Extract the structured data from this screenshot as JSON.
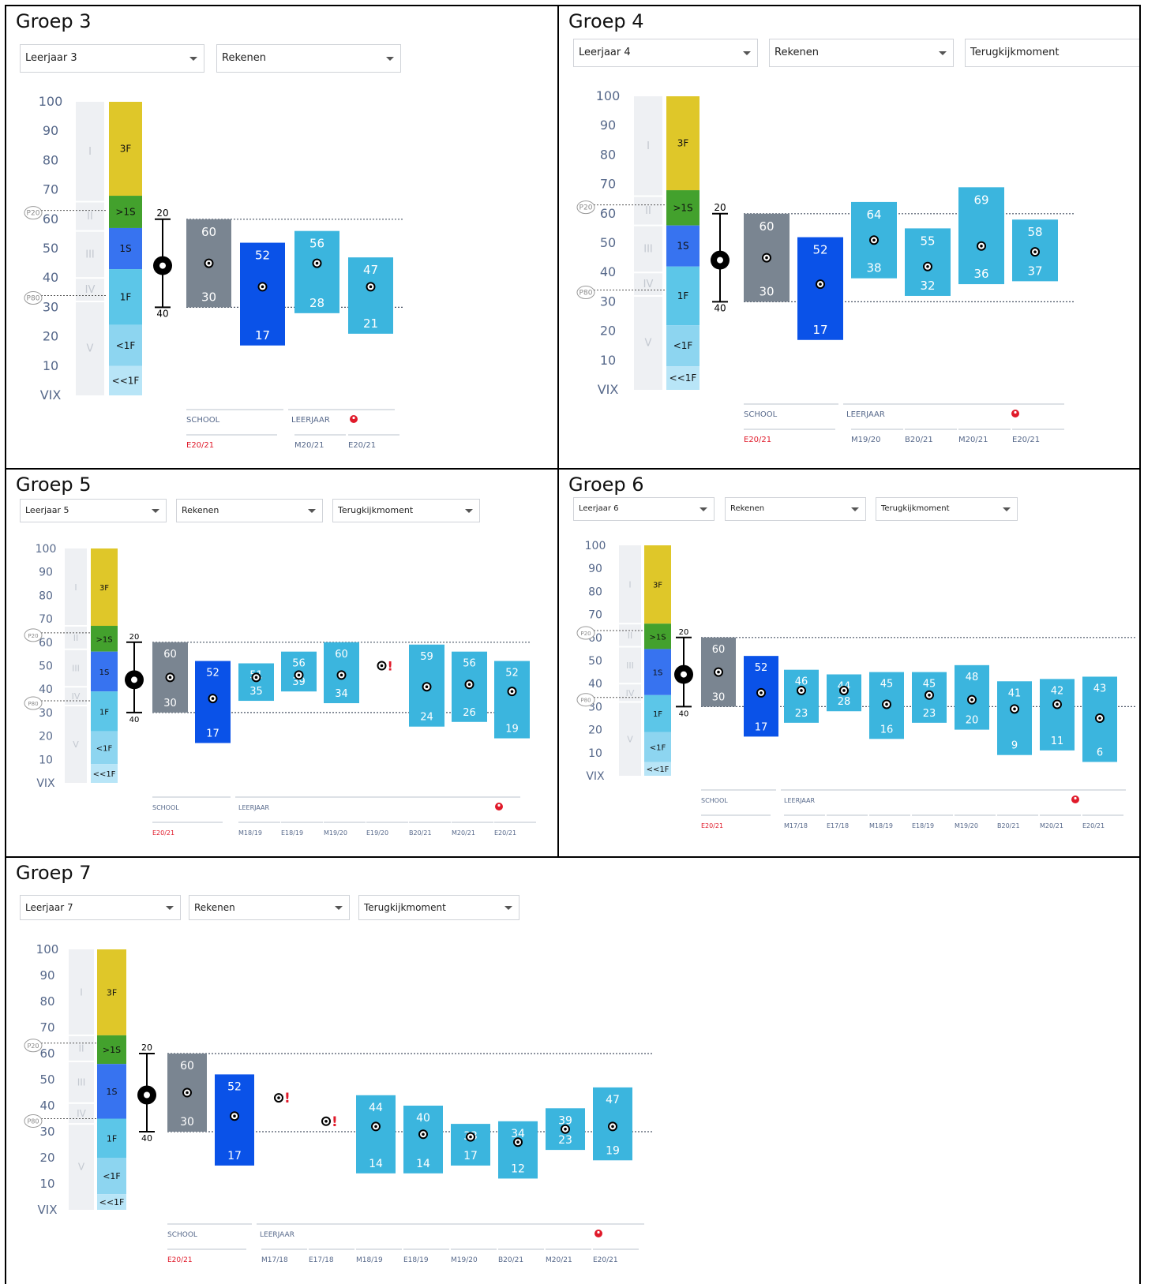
{
  "colors": {
    "school": "#7a8591",
    "year_current": "#0a52e8",
    "history": "#3bb5de",
    "level_3F": "#dfc729",
    "level_gt1S": "#43a12d",
    "level_1S": "#3773f0",
    "level_1F": "#5cc6e8",
    "level_lt1F": "#8dd5f0",
    "level_ltlt1F": "#b8e5f7",
    "roman_band": "#eef0f3",
    "alert": "#e01a2a",
    "axis_text": "#56688a"
  },
  "shared": {
    "y_ticks": [
      "100",
      "90",
      "80",
      "70",
      "60",
      "50",
      "40",
      "30",
      "20",
      "10",
      "VIX"
    ],
    "roman": [
      "I",
      "II",
      "III",
      "IV",
      "V"
    ],
    "levels": [
      "3F",
      ">1S",
      "1S",
      "1F",
      "<1F",
      "<<1F"
    ],
    "p20": "P20",
    "p80": "P80",
    "ref_top": "20",
    "ref_bottom": "40",
    "school_label": "SCHOOL",
    "leerjaar_label": "LEERJAAR",
    "alert_mark": "!"
  },
  "chart_data": [
    {
      "type": "bar",
      "title": "Groep 3",
      "dropdowns": [
        "Leerjaar 3",
        "Rekenen"
      ],
      "ylim": [
        0,
        100
      ],
      "y_axis_labels": [
        "100",
        "90",
        "80",
        "70",
        "60",
        "50",
        "40",
        "30",
        "20",
        "10",
        "VIX"
      ],
      "level_bands": [
        {
          "label": "3F",
          "from": 68,
          "to": 100
        },
        {
          "label": ">1S",
          "from": 57,
          "to": 68
        },
        {
          "label": "1S",
          "from": 43,
          "to": 57
        },
        {
          "label": "1F",
          "from": 24,
          "to": 43
        },
        {
          "label": "<1F",
          "from": 10,
          "to": 24
        },
        {
          "label": "<<1F",
          "from": 0,
          "to": 10
        }
      ],
      "p20": 63,
      "p80": 34,
      "reference_range": {
        "top": 20,
        "bottom": 40
      },
      "ranges": [
        {
          "x": "E20/21",
          "group": "school",
          "high": 60,
          "low": 30,
          "median": 45
        },
        {
          "x": "E20/21",
          "group": "leerjaar",
          "high": 52,
          "low": 17,
          "median": 37
        },
        {
          "x": "M20/21",
          "group": "history",
          "high": 56,
          "low": 28,
          "median": 45
        },
        {
          "x": "E20/21",
          "group": "history",
          "high": 47,
          "low": 21,
          "median": 37
        }
      ]
    },
    {
      "type": "bar",
      "title": "Groep 4",
      "dropdowns": [
        "Leerjaar 4",
        "Rekenen",
        "Terugkijkmoment"
      ],
      "ylim": [
        0,
        100
      ],
      "y_axis_labels": [
        "100",
        "90",
        "80",
        "70",
        "60",
        "50",
        "40",
        "30",
        "20",
        "10",
        "VIX"
      ],
      "level_bands": [
        {
          "label": "3F",
          "from": 68,
          "to": 100
        },
        {
          "label": ">1S",
          "from": 56,
          "to": 68
        },
        {
          "label": "1S",
          "from": 42,
          "to": 56
        },
        {
          "label": "1F",
          "from": 22,
          "to": 42
        },
        {
          "label": "<1F",
          "from": 8,
          "to": 22
        },
        {
          "label": "<<1F",
          "from": 0,
          "to": 8
        }
      ],
      "p20": 63,
      "p80": 34,
      "reference_range": {
        "top": 20,
        "bottom": 40
      },
      "ranges": [
        {
          "x": "E20/21",
          "group": "school",
          "high": 60,
          "low": 30,
          "median": 45
        },
        {
          "x": "E20/21",
          "group": "leerjaar",
          "high": 52,
          "low": 17,
          "median": 36
        },
        {
          "x": "M19/20",
          "group": "history",
          "high": 64,
          "low": 38,
          "median": 51
        },
        {
          "x": "B20/21",
          "group": "history",
          "high": 55,
          "low": 32,
          "median": 42
        },
        {
          "x": "M20/21",
          "group": "history",
          "high": 69,
          "low": 36,
          "median": 49
        },
        {
          "x": "E20/21",
          "group": "history",
          "high": 58,
          "low": 37,
          "median": 47
        }
      ]
    },
    {
      "type": "bar",
      "title": "Groep 5",
      "dropdowns": [
        "Leerjaar 5",
        "Rekenen",
        "Terugkijkmoment"
      ],
      "ylim": [
        0,
        100
      ],
      "y_axis_labels": [
        "100",
        "90",
        "80",
        "70",
        "60",
        "50",
        "40",
        "30",
        "20",
        "10",
        "VIX"
      ],
      "level_bands": [
        {
          "label": "3F",
          "from": 67,
          "to": 100
        },
        {
          "label": ">1S",
          "from": 56,
          "to": 67
        },
        {
          "label": "1S",
          "from": 39,
          "to": 56
        },
        {
          "label": "1F",
          "from": 22,
          "to": 39
        },
        {
          "label": "<1F",
          "from": 8,
          "to": 22
        },
        {
          "label": "<<1F",
          "from": 0,
          "to": 8
        }
      ],
      "p20": 64,
      "p80": 35,
      "reference_range": {
        "top": 20,
        "bottom": 40
      },
      "ranges": [
        {
          "x": "E20/21",
          "group": "school",
          "high": 60,
          "low": 30,
          "median": 45
        },
        {
          "x": "E20/21",
          "group": "leerjaar",
          "high": 52,
          "low": 17,
          "median": 36
        },
        {
          "x": "M18/19",
          "group": "history",
          "high": 51,
          "low": 35,
          "median": 45
        },
        {
          "x": "E18/19",
          "group": "history",
          "high": 56,
          "low": 39,
          "median": 46
        },
        {
          "x": "M19/20",
          "group": "history",
          "high": 60,
          "low": 34,
          "median": 46
        },
        {
          "x": "E19/20",
          "group": "history",
          "high": null,
          "low": null,
          "median": 50,
          "alert": true
        },
        {
          "x": "B20/21",
          "group": "history",
          "high": 59,
          "low": 24,
          "median": 41
        },
        {
          "x": "M20/21",
          "group": "history",
          "high": 56,
          "low": 26,
          "median": 42
        },
        {
          "x": "E20/21",
          "group": "history",
          "high": 52,
          "low": 19,
          "median": 39
        }
      ]
    },
    {
      "type": "bar",
      "title": "Groep 6",
      "dropdowns": [
        "Leerjaar 6",
        "Rekenen",
        "Terugkijkmoment"
      ],
      "ylim": [
        0,
        100
      ],
      "y_axis_labels": [
        "100",
        "90",
        "80",
        "70",
        "60",
        "50",
        "40",
        "30",
        "20",
        "10",
        "VIX"
      ],
      "level_bands": [
        {
          "label": "3F",
          "from": 66,
          "to": 100
        },
        {
          "label": ">1S",
          "from": 55,
          "to": 66
        },
        {
          "label": "1S",
          "from": 35,
          "to": 55
        },
        {
          "label": "1F",
          "from": 19,
          "to": 35
        },
        {
          "label": "<1F",
          "from": 6,
          "to": 19
        },
        {
          "label": "<<1F",
          "from": 0,
          "to": 6
        }
      ],
      "p20": 63,
      "p80": 34,
      "reference_range": {
        "top": 20,
        "bottom": 40
      },
      "ranges": [
        {
          "x": "E20/21",
          "group": "school",
          "high": 60,
          "low": 30,
          "median": 45
        },
        {
          "x": "E20/21",
          "group": "leerjaar",
          "high": 52,
          "low": 17,
          "median": 36
        },
        {
          "x": "M17/18",
          "group": "history",
          "high": 46,
          "low": 23,
          "median": 37
        },
        {
          "x": "E17/18",
          "group": "history",
          "high": 44,
          "low": 28,
          "median": 37
        },
        {
          "x": "M18/19",
          "group": "history",
          "high": 45,
          "low": 16,
          "median": 31
        },
        {
          "x": "E18/19",
          "group": "history",
          "high": 45,
          "low": 23,
          "median": 35
        },
        {
          "x": "M19/20",
          "group": "history",
          "high": 48,
          "low": 20,
          "median": 33
        },
        {
          "x": "B20/21",
          "group": "history",
          "high": 41,
          "low": 9,
          "median": 29
        },
        {
          "x": "M20/21",
          "group": "history",
          "high": 42,
          "low": 11,
          "median": 31
        },
        {
          "x": "E20/21",
          "group": "history",
          "high": 43,
          "low": 6,
          "median": 25
        }
      ]
    },
    {
      "type": "bar",
      "title": "Groep 7",
      "dropdowns": [
        "Leerjaar 7",
        "Rekenen",
        "Terugkijkmoment"
      ],
      "ylim": [
        0,
        100
      ],
      "y_axis_labels": [
        "100",
        "90",
        "80",
        "70",
        "60",
        "50",
        "40",
        "30",
        "20",
        "10",
        "VIX"
      ],
      "level_bands": [
        {
          "label": "3F",
          "from": 67,
          "to": 100
        },
        {
          "label": ">1S",
          "from": 56,
          "to": 67
        },
        {
          "label": "1S",
          "from": 35,
          "to": 56
        },
        {
          "label": "1F",
          "from": 20,
          "to": 35
        },
        {
          "label": "<1F",
          "from": 6,
          "to": 20
        },
        {
          "label": "<<1F",
          "from": 0,
          "to": 6
        }
      ],
      "p20": 64,
      "p80": 35,
      "reference_range": {
        "top": 20,
        "bottom": 40
      },
      "ranges": [
        {
          "x": "E20/21",
          "group": "school",
          "high": 60,
          "low": 30,
          "median": 45
        },
        {
          "x": "E20/21",
          "group": "leerjaar",
          "high": 52,
          "low": 17,
          "median": 36
        },
        {
          "x": "M17/18",
          "group": "history",
          "high": null,
          "low": null,
          "median": 43,
          "alert": true
        },
        {
          "x": "E17/18",
          "group": "history",
          "high": null,
          "low": null,
          "median": 34,
          "alert": true
        },
        {
          "x": "M18/19",
          "group": "history",
          "high": 44,
          "low": 14,
          "median": 32
        },
        {
          "x": "E18/19",
          "group": "history",
          "high": 40,
          "low": 14,
          "median": 29
        },
        {
          "x": "M19/20",
          "group": "history",
          "high": 33,
          "low": 17,
          "median": 28
        },
        {
          "x": "B20/21",
          "group": "history",
          "high": 34,
          "low": 12,
          "median": 26
        },
        {
          "x": "M20/21",
          "group": "history",
          "high": 39,
          "low": 23,
          "median": 31
        },
        {
          "x": "E20/21",
          "group": "history",
          "high": 47,
          "low": 19,
          "median": 32
        }
      ]
    }
  ]
}
